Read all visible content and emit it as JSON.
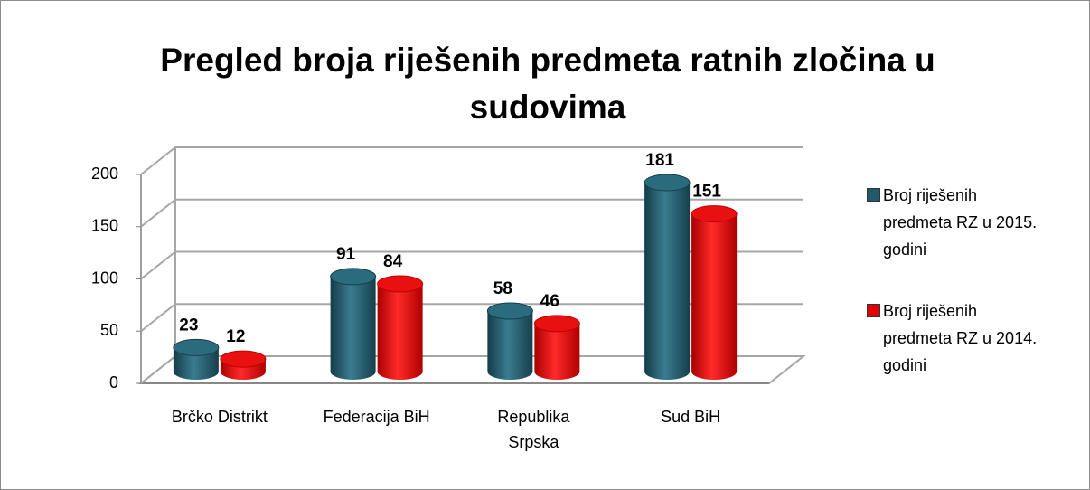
{
  "chart_data": {
    "type": "bar3d",
    "title": "Pregled broja riješenih predmeta ratnih zločina u sudovima",
    "categories": [
      "Brčko Distrikt",
      "Federacija BiH",
      "Republika Srpska",
      "Sud BiH"
    ],
    "series": [
      {
        "name": "Broj riješenih predmeta RZ u 2015. godini",
        "color": "#215a6b",
        "values": [
          23,
          91,
          58,
          181
        ]
      },
      {
        "name": "Broj riješenih predmeta RZ u 2014. godini",
        "color": "#e00000",
        "values": [
          12,
          84,
          46,
          151
        ]
      }
    ],
    "ylim": [
      0,
      200
    ],
    "yticks": [
      0,
      50,
      100,
      150,
      200
    ],
    "grid": true,
    "legend": "right"
  }
}
